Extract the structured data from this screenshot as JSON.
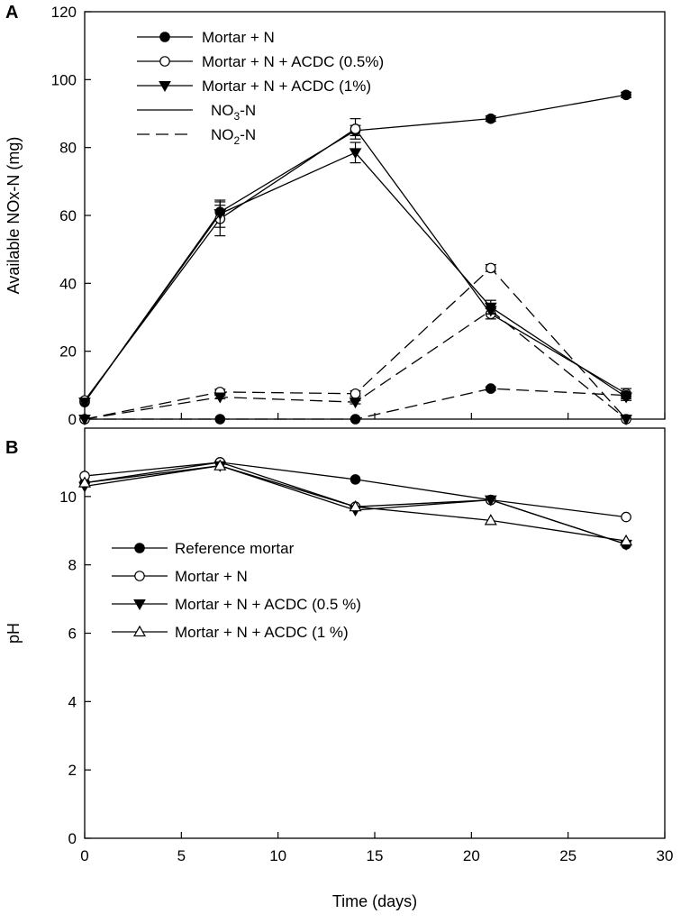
{
  "chart_data": [
    {
      "panel": "A",
      "type": "line",
      "xlabel": "Time (days)",
      "ylabel": "Available NOx-N (mg)",
      "xlim": [
        0,
        30
      ],
      "ylim": [
        0,
        120
      ],
      "yticks": [
        0,
        20,
        40,
        60,
        80,
        100,
        120
      ],
      "series": [
        {
          "name": "Mortar + N",
          "form": "NO3-N",
          "marker": "circle-filled",
          "dash": "solid",
          "x": [
            0,
            7,
            14,
            21,
            28
          ],
          "values": [
            5,
            61,
            85,
            88.5,
            95.5
          ],
          "err": [
            0,
            2,
            1.5,
            0.8,
            0.8
          ]
        },
        {
          "name": "Mortar + N + ACDC (0.5%)",
          "form": "NO3-N",
          "marker": "circle-open",
          "dash": "solid",
          "x": [
            0,
            7,
            14,
            21,
            28
          ],
          "values": [
            5.5,
            59,
            85.5,
            31,
            7.5
          ],
          "err": [
            0,
            5,
            3,
            1.5,
            1.5
          ]
        },
        {
          "name": "Mortar + N + ACDC (1%)",
          "form": "NO3-N",
          "marker": "triangle-down-filled",
          "dash": "solid",
          "x": [
            0,
            7,
            14,
            21,
            28
          ],
          "values": [
            5,
            60.5,
            78.5,
            33,
            6.5
          ],
          "err": [
            0,
            4,
            3,
            2,
            1
          ]
        },
        {
          "name": "Mortar + N",
          "form": "NO2-N",
          "marker": "circle-filled",
          "dash": "dashed",
          "x": [
            0,
            7,
            14,
            21,
            28
          ],
          "values": [
            0,
            0,
            0,
            9,
            7
          ],
          "err": [
            0,
            0,
            0,
            0.5,
            0.5
          ]
        },
        {
          "name": "Mortar + N + ACDC (0.5%)",
          "form": "NO2-N",
          "marker": "circle-open",
          "dash": "dashed",
          "x": [
            0,
            7,
            14,
            21,
            28
          ],
          "values": [
            0,
            8,
            7.5,
            44.5,
            0
          ],
          "err": [
            0,
            0.8,
            0.8,
            1,
            0
          ]
        },
        {
          "name": "Mortar + N + ACDC (1%)",
          "form": "NO2-N",
          "marker": "triangle-down-filled",
          "dash": "dashed",
          "x": [
            0,
            7,
            14,
            21,
            28
          ],
          "values": [
            0,
            6.5,
            5,
            32,
            0
          ],
          "err": [
            0,
            0.5,
            0.5,
            1,
            0
          ]
        }
      ],
      "legend": {
        "entries": [
          {
            "label": "Mortar + N",
            "marker": "circle-filled",
            "dash": "solid"
          },
          {
            "label": "Mortar + N + ACDC (0.5%)",
            "marker": "circle-open",
            "dash": "solid"
          },
          {
            "label": "Mortar + N + ACDC (1%)",
            "marker": "triangle-down-filled",
            "dash": "solid"
          },
          {
            "label_main": "NO",
            "label_sub": "3",
            "label_tail": "-N",
            "marker": "none",
            "dash": "solid"
          },
          {
            "label_main": "NO",
            "label_sub": "2",
            "label_tail": "-N",
            "marker": "none",
            "dash": "dashed"
          }
        ],
        "placement": "top-left"
      }
    },
    {
      "panel": "B",
      "type": "line",
      "xlabel": "Time (days)",
      "ylabel": "pH",
      "xlim": [
        0,
        30
      ],
      "ylim": [
        0,
        12
      ],
      "yticks": [
        0,
        2,
        4,
        6,
        8,
        10
      ],
      "xticks": [
        0,
        5,
        10,
        15,
        20,
        25,
        30
      ],
      "series": [
        {
          "name": "Reference mortar",
          "marker": "circle-filled",
          "x": [
            0,
            7,
            14,
            21,
            28
          ],
          "values": [
            10.4,
            11.0,
            10.5,
            9.9,
            8.6
          ]
        },
        {
          "name": "Mortar + N",
          "marker": "circle-open",
          "x": [
            0,
            7,
            14,
            21,
            28
          ],
          "values": [
            10.6,
            11.0,
            9.7,
            9.9,
            9.4
          ]
        },
        {
          "name": "Mortar + N + ACDC (0.5 %)",
          "marker": "triangle-down-filled",
          "x": [
            0,
            7,
            14,
            21,
            28
          ],
          "values": [
            10.3,
            10.9,
            9.6,
            9.9,
            8.6
          ]
        },
        {
          "name": "Mortar + N + ACDC (1 %)",
          "marker": "triangle-up-open",
          "x": [
            0,
            7,
            14,
            21,
            28
          ],
          "values": [
            10.4,
            10.9,
            9.7,
            9.3,
            8.7
          ]
        }
      ],
      "legend": {
        "entries": [
          {
            "label": "Reference mortar",
            "marker": "circle-filled"
          },
          {
            "label": "Mortar + N",
            "marker": "circle-open"
          },
          {
            "label": "Mortar + N + ACDC (0.5 %)",
            "marker": "triangle-down-filled"
          },
          {
            "label": "Mortar + N + ACDC (1 %)",
            "marker": "triangle-up-open"
          }
        ],
        "placement": "middle-left"
      }
    }
  ]
}
